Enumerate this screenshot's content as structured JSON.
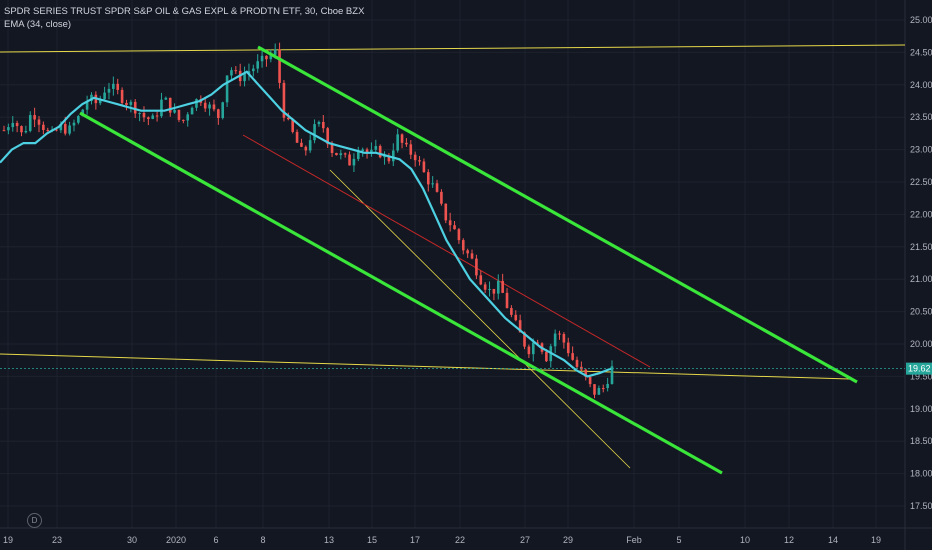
{
  "chart_data": {
    "type": "candlestick",
    "title": "SPDR SERIES TRUST SPDR S&P OIL & GAS EXPL & PRODTN ETF, 30, Cboe BZX",
    "indicator_label": "EMA (34, close)",
    "x_ticks": [
      "19",
      "23",
      "30",
      "2020",
      "6",
      "8",
      "13",
      "15",
      "17",
      "22",
      "27",
      "29",
      "Feb",
      "5",
      "10",
      "12",
      "14",
      "19"
    ],
    "y_ticks": [
      "25.00",
      "24.50",
      "24.00",
      "23.50",
      "23.00",
      "22.50",
      "22.00",
      "21.50",
      "21.00",
      "20.50",
      "20.00",
      "19.50",
      "19.00",
      "18.50",
      "18.00",
      "17.50"
    ],
    "ylim": [
      17.3,
      25.15
    ],
    "last_price": "19.62",
    "close_path": [
      23.3,
      23.5,
      23.2,
      23.6,
      23.4,
      23.2,
      23.35,
      23.3,
      23.5,
      23.8,
      23.7,
      24.0,
      23.9,
      23.75,
      23.65,
      23.5,
      23.45,
      23.8,
      23.6,
      23.4,
      23.7,
      23.8,
      23.65,
      23.5,
      24.3,
      24.1,
      24.2,
      24.3,
      24.4,
      24.5,
      23.5,
      23.2,
      22.9,
      23.3,
      23.4,
      23.0,
      22.9,
      22.8,
      23.1,
      22.9,
      23.0,
      22.8,
      23.2,
      23.0,
      22.9,
      22.6,
      22.4,
      22.0,
      21.8,
      21.5,
      21.3,
      21.0,
      20.8,
      20.9,
      20.5,
      20.2,
      19.9,
      20.1,
      19.8,
      20.2,
      20.0,
      19.7,
      19.5,
      19.25,
      19.3,
      19.62
    ],
    "ema_path": [
      22.8,
      23.0,
      23.1,
      23.1,
      23.25,
      23.35,
      23.55,
      23.7,
      23.8,
      23.75,
      23.7,
      23.65,
      23.6,
      23.6,
      23.6,
      23.65,
      23.7,
      23.75,
      23.85,
      24.0,
      24.1,
      24.2,
      24.0,
      23.8,
      23.6,
      23.45,
      23.3,
      23.2,
      23.1,
      23.05,
      23.0,
      22.95,
      22.95,
      22.9,
      22.85,
      22.7,
      22.4,
      22.0,
      21.6,
      21.3,
      21.0,
      20.8,
      20.6,
      20.4,
      20.25,
      20.1,
      19.95,
      19.85,
      19.75,
      19.6,
      19.5,
      19.55,
      19.62
    ],
    "series": [
      {
        "name": "",
        "values": []
      }
    ]
  },
  "colors": {
    "background": "#131722",
    "grid": "#1e222d",
    "up": "#26a69a",
    "down": "#ef5350",
    "ema": "#4dd0e1",
    "channel": "#39e639",
    "horizontal_lines": "#e6d84a",
    "red_trend": "#c62828",
    "last_price_label": "#26a69a"
  },
  "logo_letter": "D"
}
